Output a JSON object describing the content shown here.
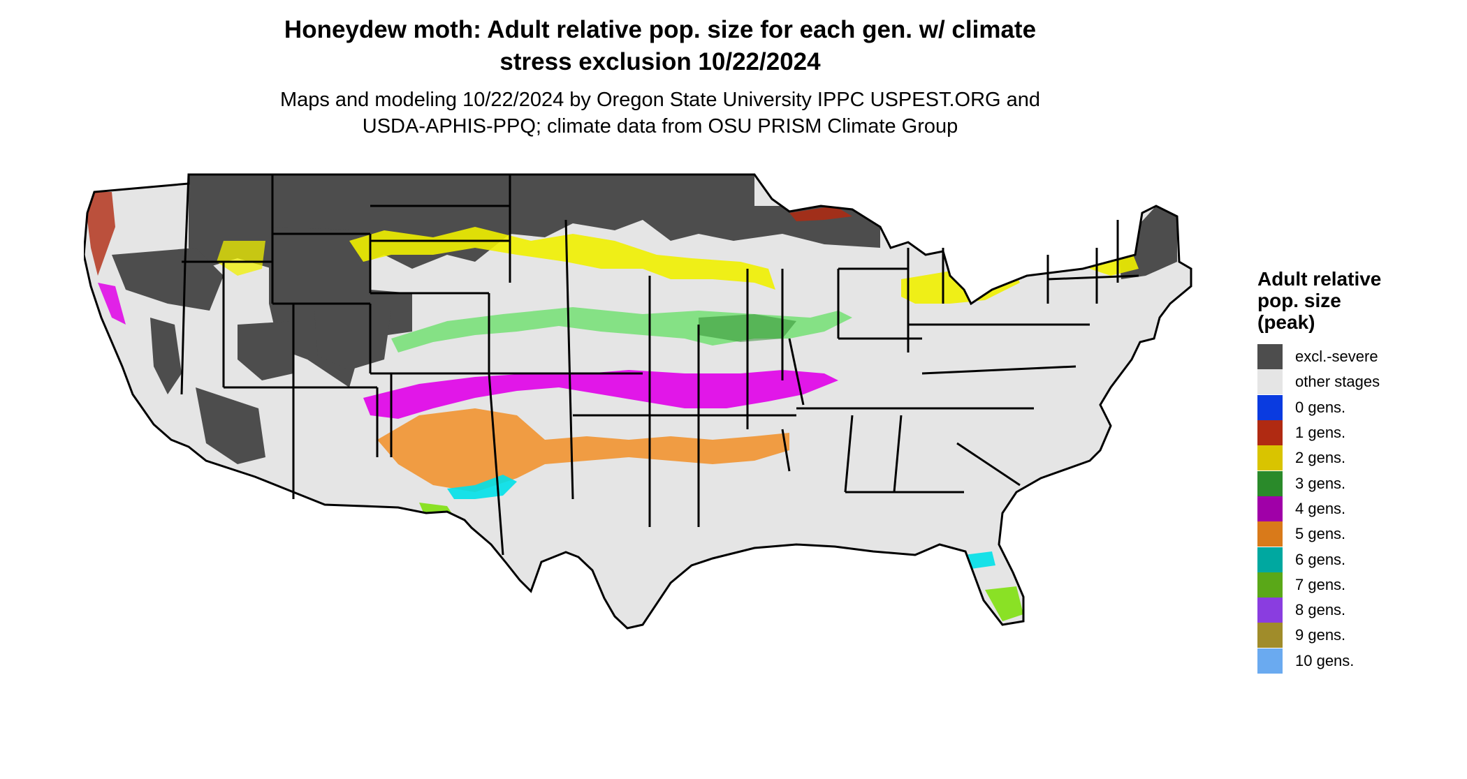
{
  "title": {
    "line1": "Honeydew moth: Adult relative pop. size for each gen. w/ climate",
    "line2": "stress exclusion 10/22/2024"
  },
  "subtitle": {
    "line1": "Maps and modeling 10/22/2024 by Oregon State University IPPC USPEST.ORG and",
    "line2": "USDA-APHIS-PPQ; climate data from OSU PRISM Climate Group"
  },
  "legend": {
    "title_lines": [
      "Adult relative",
      "pop. size",
      "(peak)"
    ],
    "items": [
      {
        "label": "excl.-severe",
        "color": "#4d4d4d"
      },
      {
        "label": "other stages",
        "color": "#e5e5e5"
      },
      {
        "label": "0 gens.",
        "color": "#0a3be0"
      },
      {
        "label": "1 gens.",
        "color": "#b02a12"
      },
      {
        "label": "2 gens.",
        "color": "#d9c400"
      },
      {
        "label": "3 gens.",
        "color": "#2a8a2a"
      },
      {
        "label": "4 gens.",
        "color": "#a000a8"
      },
      {
        "label": "5 gens.",
        "color": "#d97a1a"
      },
      {
        "label": "6 gens.",
        "color": "#00a8a0"
      },
      {
        "label": "7 gens.",
        "color": "#5aa818"
      },
      {
        "label": "8 gens.",
        "color": "#8a3de0"
      },
      {
        "label": "9 gens.",
        "color": "#a08c2a"
      },
      {
        "label": "10 gens.",
        "color": "#6aaaf0"
      }
    ]
  },
  "map": {
    "region": "Contiguous United States",
    "bands": [
      {
        "zone": "northern-tier",
        "value": "excl.-severe"
      },
      {
        "zone": "upper-midwest",
        "value": "2 gens."
      },
      {
        "zone": "central",
        "value": "3 gens."
      },
      {
        "zone": "mid-south",
        "value": "4 gens."
      },
      {
        "zone": "gulf-states",
        "value": "5 gens."
      },
      {
        "zone": "gulf-coast",
        "value": "6 gens."
      },
      {
        "zone": "south-texas-florida",
        "value": "7 gens."
      },
      {
        "zone": "pacific-northwest-coast",
        "value": "1 gens."
      }
    ]
  }
}
